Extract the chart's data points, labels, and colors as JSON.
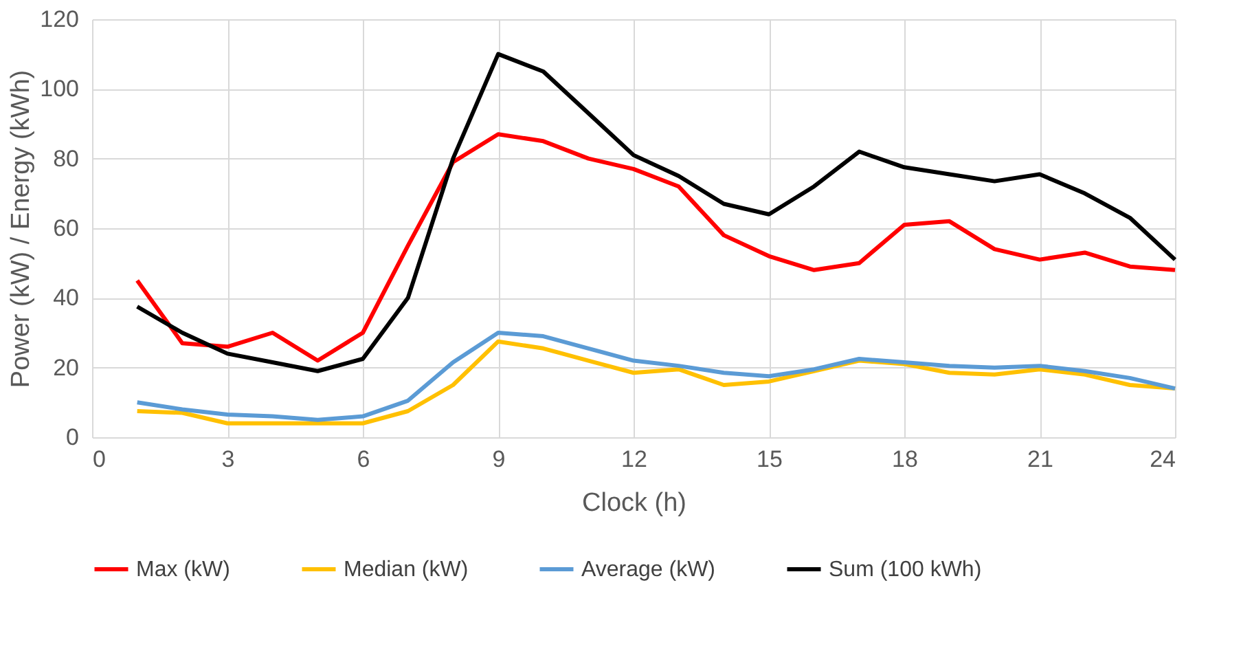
{
  "chart_data": {
    "type": "line",
    "xlabel": "Clock (h)",
    "ylabel": "Power (kW) / Energy (kWh)",
    "x": [
      1,
      2,
      3,
      4,
      5,
      6,
      7,
      8,
      9,
      10,
      11,
      12,
      13,
      14,
      15,
      16,
      17,
      18,
      19,
      20,
      21,
      22,
      23,
      24
    ],
    "xlim": [
      0,
      24
    ],
    "xticks": [
      0,
      3,
      6,
      9,
      12,
      15,
      18,
      21,
      24
    ],
    "ylim": [
      0,
      120
    ],
    "yticks": [
      0,
      20,
      40,
      60,
      80,
      100,
      120
    ],
    "grid": true,
    "legend": "bottom",
    "marker": "none",
    "line_style": "solid",
    "series": [
      {
        "name": "Max (kW)",
        "color": "#ff0000",
        "values": [
          45,
          27,
          26,
          30,
          22,
          30,
          55,
          79,
          87,
          85,
          80,
          77,
          72,
          58,
          52,
          48,
          50,
          61,
          62,
          54,
          51,
          53,
          49,
          48
        ]
      },
      {
        "name": "Median (kW)",
        "color": "#ffc000",
        "values": [
          7.5,
          7,
          4,
          4,
          4,
          4,
          7.5,
          15,
          27.5,
          25.5,
          22,
          18.5,
          19.5,
          15,
          16,
          19,
          22,
          21,
          18.5,
          18,
          19.5,
          18,
          15,
          14
        ]
      },
      {
        "name": "Average (kW)",
        "color": "#5b9bd5",
        "values": [
          10,
          8,
          6.5,
          6,
          5,
          6,
          10.5,
          21.5,
          30,
          29,
          25.5,
          22,
          20.5,
          18.5,
          17.5,
          19.5,
          22.5,
          21.5,
          20.5,
          20,
          20.5,
          19,
          17,
          14
        ]
      },
      {
        "name": "Sum (100 kWh)",
        "color": "#000000",
        "values": [
          37.5,
          30,
          24,
          21.5,
          19,
          22.5,
          40,
          80,
          110,
          105,
          93,
          81,
          75,
          67,
          64,
          72,
          82,
          77.5,
          75.5,
          73.5,
          75.5,
          70,
          63,
          51
        ]
      }
    ]
  }
}
